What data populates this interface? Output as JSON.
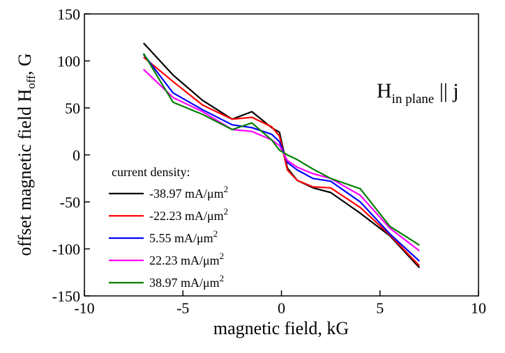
{
  "chart_data": {
    "type": "line",
    "title": "",
    "xlabel": "magnetic field, kG",
    "ylabel": {
      "main": "offset magnetic field H",
      "sub": "off",
      "suffix": ", G"
    },
    "xlim": [
      -10,
      10
    ],
    "ylim": [
      -150,
      150
    ],
    "x_ticks": [
      -10,
      -5,
      0,
      5,
      10
    ],
    "y_ticks": [
      150,
      100,
      50,
      0,
      -50,
      -100,
      -150
    ],
    "grid": false,
    "annotation": {
      "main": "H",
      "sub": "in plane",
      "suffix": " || j"
    },
    "legend": {
      "title": "current density:",
      "placement": "bottom-left",
      "entries": [
        {
          "value": "-38.97 mA/μm",
          "sup": "2"
        },
        {
          "value": "-22.23 mA/μm",
          "sup": "2"
        },
        {
          "value": "5.55 mA/μm",
          "sup": "2"
        },
        {
          "value": "22.23  mA/μm",
          "sup": "2"
        },
        {
          "value": "38.97 mA/μm",
          "sup": "2"
        }
      ]
    },
    "series": [
      {
        "color": "#000000",
        "x": [
          -7,
          -5.5,
          -4,
          -2.5,
          -1.5,
          -0.5,
          -0.1,
          0.3,
          0.8,
          1.6,
          2.5,
          4,
          5.5,
          7
        ],
        "y": [
          119,
          85,
          58,
          38,
          46,
          29,
          24,
          -14,
          -27,
          -35,
          -40,
          -62,
          -86,
          -120
        ]
      },
      {
        "color": "#ff0000",
        "x": [
          -7,
          -5.5,
          -4,
          -2.5,
          -1.5,
          -0.5,
          -0.1,
          0.3,
          0.8,
          1.6,
          2.5,
          4,
          5.5,
          7
        ],
        "y": [
          104,
          78,
          53,
          38,
          40,
          30,
          20,
          -16,
          -27,
          -34,
          -35,
          -56,
          -85,
          -118
        ]
      },
      {
        "color": "#0000ff",
        "x": [
          -7,
          -5.5,
          -4,
          -2.5,
          -1.5,
          -0.5,
          -0.1,
          0.3,
          0.8,
          1.6,
          2.5,
          4,
          5.5,
          7
        ],
        "y": [
          107,
          66,
          48,
          32,
          29,
          22,
          14,
          -8,
          -16,
          -25,
          -28,
          -50,
          -84,
          -113
        ]
      },
      {
        "color": "#ff00ff",
        "x": [
          -7,
          -5.5,
          -4,
          -2.5,
          -1.5,
          -0.5,
          -0.1,
          0.3,
          0.8,
          1.6,
          2.5,
          4,
          5.5,
          7
        ],
        "y": [
          91,
          61,
          46,
          27,
          25,
          16,
          10,
          -6,
          -13,
          -20,
          -25,
          -43,
          -78,
          -102
        ]
      },
      {
        "color": "#008000",
        "x": [
          -7,
          -5.5,
          -4,
          -2.5,
          -1.5,
          -0.5,
          -0.1,
          0.3,
          0.8,
          1.6,
          2.5,
          4,
          5.5,
          7
        ],
        "y": [
          108,
          56,
          43,
          27,
          34,
          16,
          5,
          0,
          -5,
          -15,
          -25,
          -36,
          -76,
          -96
        ]
      }
    ]
  }
}
